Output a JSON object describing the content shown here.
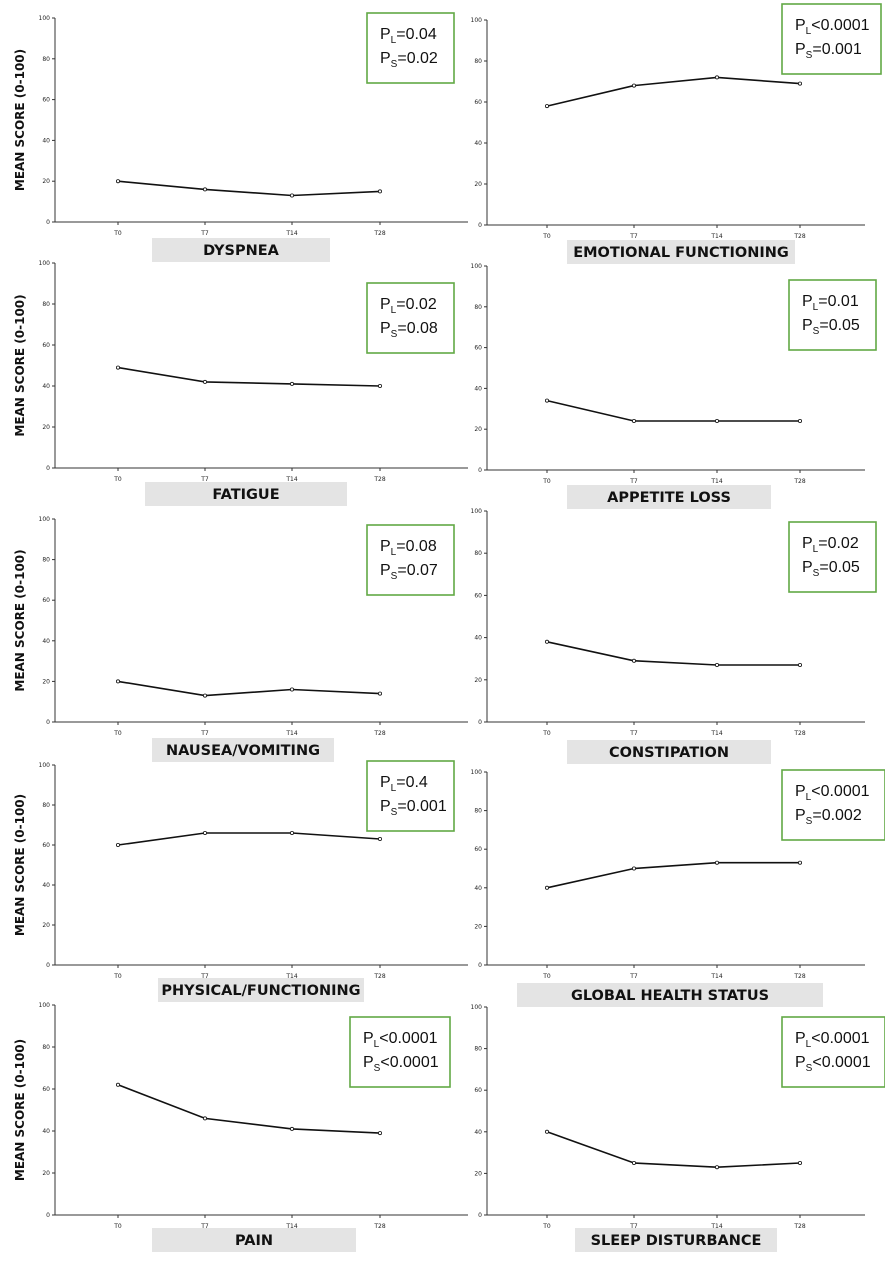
{
  "figure": {
    "y_axis_label": "MEAN SCORE (0-100)"
  },
  "chart_data": [
    {
      "type": "line",
      "title": "DYSPNEA",
      "x": [
        "T0",
        "T7",
        "T14",
        "T28"
      ],
      "values": [
        20,
        16,
        13,
        15
      ],
      "ylim": [
        0,
        100
      ],
      "yticks": [
        "0",
        "20",
        "40",
        "60",
        "80",
        "100"
      ],
      "ylabel": "MEAN SCORE (0-100)",
      "p_lines": [
        [
          "P",
          "L",
          "=0.04"
        ],
        [
          "P",
          "S",
          "=0.02"
        ]
      ]
    },
    {
      "type": "line",
      "title": "EMOTIONAL FUNCTIONING",
      "x": [
        "T0",
        "T7",
        "T14",
        "T28"
      ],
      "values": [
        58,
        68,
        72,
        69
      ],
      "ylim": [
        0,
        100
      ],
      "yticks": [
        "0",
        "20",
        "40",
        "60",
        "80",
        "100"
      ],
      "ylabel": "",
      "p_lines": [
        [
          "P",
          "L",
          "<0.0001"
        ],
        [
          "P",
          "S",
          "=0.001"
        ]
      ]
    },
    {
      "type": "line",
      "title": "FATIGUE",
      "x": [
        "T0",
        "T7",
        "T14",
        "T28"
      ],
      "values": [
        49,
        42,
        41,
        40
      ],
      "ylim": [
        0,
        100
      ],
      "yticks": [
        "0",
        "20",
        "40",
        "60",
        "80",
        "100"
      ],
      "ylabel": "MEAN SCORE (0-100)",
      "p_lines": [
        [
          "P",
          "L",
          "=0.02"
        ],
        [
          "P",
          "S",
          "=0.08"
        ]
      ]
    },
    {
      "type": "line",
      "title": "APPETITE LOSS",
      "x": [
        "T0",
        "T7",
        "T14",
        "T28"
      ],
      "values": [
        34,
        24,
        24,
        24
      ],
      "ylim": [
        0,
        100
      ],
      "yticks": [
        "0",
        "20",
        "40",
        "60",
        "80",
        "100"
      ],
      "ylabel": "",
      "p_lines": [
        [
          "P",
          "L",
          "=0.01"
        ],
        [
          "P",
          "S",
          "=0.05"
        ]
      ]
    },
    {
      "type": "line",
      "title": "NAUSEA/VOMITING",
      "x": [
        "T0",
        "T7",
        "T14",
        "T28"
      ],
      "values": [
        20,
        13,
        16,
        14
      ],
      "ylim": [
        0,
        100
      ],
      "yticks": [
        "0",
        "20",
        "40",
        "60",
        "80",
        "100"
      ],
      "ylabel": "MEAN SCORE (0-100)",
      "p_lines": [
        [
          "P",
          "L",
          "=0.08"
        ],
        [
          "P",
          "S",
          "=0.07"
        ]
      ]
    },
    {
      "type": "line",
      "title": "CONSTIPATION",
      "x": [
        "T0",
        "T7",
        "T14",
        "T28"
      ],
      "values": [
        38,
        29,
        27,
        27
      ],
      "ylim": [
        0,
        100
      ],
      "yticks": [
        "0",
        "20",
        "40",
        "60",
        "80",
        "100"
      ],
      "ylabel": "",
      "p_lines": [
        [
          "P",
          "L",
          "=0.02"
        ],
        [
          "P",
          "S",
          "=0.05"
        ]
      ]
    },
    {
      "type": "line",
      "title": "PHYSICAL/FUNCTIONING",
      "x": [
        "T0",
        "T7",
        "T14",
        "T28"
      ],
      "values": [
        60,
        66,
        66,
        63
      ],
      "ylim": [
        0,
        100
      ],
      "yticks": [
        "0",
        "20",
        "40",
        "60",
        "80",
        "100"
      ],
      "ylabel": "MEAN SCORE (0-100)",
      "p_lines": [
        [
          "P",
          "L",
          "=0.4"
        ],
        [
          "P",
          "S",
          "=0.001"
        ]
      ]
    },
    {
      "type": "line",
      "title": "GLOBAL HEALTH STATUS",
      "x": [
        "T0",
        "T7",
        "T14",
        "T28"
      ],
      "values": [
        40,
        50,
        53,
        53
      ],
      "ylim": [
        0,
        100
      ],
      "yticks": [
        "0",
        "20",
        "40",
        "60",
        "80",
        "100"
      ],
      "ylabel": "",
      "p_lines": [
        [
          "P",
          "L",
          "<0.0001"
        ],
        [
          "P",
          "S",
          "=0.002"
        ]
      ]
    },
    {
      "type": "line",
      "title": "PAIN",
      "x": [
        "T0",
        "T7",
        "T14",
        "T28"
      ],
      "values": [
        62,
        46,
        41,
        39
      ],
      "ylim": [
        0,
        100
      ],
      "yticks": [
        "0",
        "20",
        "40",
        "60",
        "80",
        "100"
      ],
      "ylabel": "MEAN SCORE (0-100)",
      "p_lines": [
        [
          "P",
          "L",
          "<0.0001"
        ],
        [
          "P",
          "S",
          "<0.0001"
        ]
      ]
    },
    {
      "type": "line",
      "title": "SLEEP DISTURBANCE",
      "x": [
        "T0",
        "T7",
        "T14",
        "T28"
      ],
      "values": [
        40,
        25,
        23,
        25
      ],
      "ylim": [
        0,
        100
      ],
      "yticks": [
        "0",
        "20",
        "40",
        "60",
        "80",
        "100"
      ],
      "ylabel": "",
      "p_lines": [
        [
          "P",
          "L",
          "<0.0001"
        ],
        [
          "P",
          "S",
          "<0.0001"
        ]
      ]
    }
  ]
}
